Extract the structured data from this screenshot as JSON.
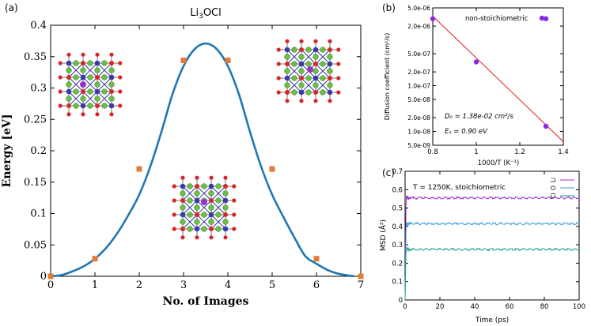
{
  "chart_data": [
    {
      "id": "a",
      "type": "line",
      "panel_label": "(a)",
      "title": "Li3OCl",
      "xlabel": "No. of Images",
      "ylabel": "Energy [eV]",
      "xlim": [
        0,
        7
      ],
      "ylim": [
        0,
        0.4
      ],
      "xticks": [
        "0",
        "1",
        "2",
        "3",
        "4",
        "5",
        "6",
        "7"
      ],
      "yticks": [
        "0",
        "0.05",
        "0.1",
        "0.15",
        "0.2",
        "0.25",
        "0.3",
        "0.35",
        "0.4"
      ],
      "curve": {
        "name": "fitted energy profile",
        "color": "#1f77b4",
        "x": [
          0,
          0.25,
          0.5,
          0.75,
          1.0,
          1.25,
          1.5,
          1.75,
          2.0,
          2.25,
          2.5,
          2.75,
          3.0,
          3.25,
          3.5,
          3.75,
          4.0,
          4.25,
          4.5,
          4.75,
          5.0,
          5.25,
          5.5,
          5.75,
          6.0,
          6.25,
          6.5,
          6.75,
          6.85
        ],
        "y": [
          0,
          0.002,
          0.008,
          0.016,
          0.028,
          0.045,
          0.068,
          0.097,
          0.13,
          0.175,
          0.23,
          0.29,
          0.335,
          0.362,
          0.371,
          0.362,
          0.335,
          0.29,
          0.23,
          0.175,
          0.13,
          0.095,
          0.062,
          0.032,
          0.02,
          0.01,
          0.004,
          0.001,
          0
        ]
      },
      "points": {
        "name": "NEB images",
        "color": "#e07b39",
        "x": [
          0,
          1,
          2,
          3,
          4,
          5,
          6,
          7
        ],
        "y": [
          0,
          0.028,
          0.171,
          0.344,
          0.344,
          0.171,
          0.028,
          0
        ]
      }
    },
    {
      "id": "b",
      "type": "scatter",
      "panel_label": "(b)",
      "xlabel": "1000/T (K⁻¹)",
      "ylabel": "Diffusion coefficient (cm²/s)",
      "xlim": [
        0.8,
        1.4
      ],
      "ylim": [
        5e-09,
        5e-06
      ],
      "yscale": "log",
      "xticks": [
        "0.8",
        "1",
        "1.2",
        "1.4"
      ],
      "yticks": [
        "5.0e-06",
        "2.0e-06",
        "5.0e-07",
        "2.0e-07",
        "1.0e-07",
        "5.0e-08",
        "2.0e-08",
        "1.0e-08",
        "5.0e-09"
      ],
      "legend_text": "non-stoichiometric",
      "annotation_d0": "D₀ = 1.38e-02 cm²/s",
      "annotation_ea": "Eₐ = 0.90 eV",
      "points": {
        "name": "non-stoichiometric",
        "color": "#8a2be2",
        "x": [
          0.8,
          1.0,
          1.32,
          1.32
        ],
        "y": [
          2.9e-06,
          3.3e-07,
          2.9e-06,
          1.3e-08
        ]
      },
      "fit_line": {
        "color": "#e41a1c",
        "x": [
          0.8,
          1.4
        ],
        "y": [
          3.3e-06,
          6e-09
        ]
      }
    },
    {
      "id": "c",
      "type": "line",
      "panel_label": "(c)",
      "xlabel": "Time (ps)",
      "ylabel": "MSD (Å²)",
      "xlim": [
        0,
        100
      ],
      "ylim": [
        0,
        0.7
      ],
      "xticks": [
        "0",
        "20",
        "40",
        "60",
        "80",
        "100"
      ],
      "yticks": [
        "0",
        "0.1",
        "0.2",
        "0.3",
        "0.4",
        "0.5",
        "0.6",
        "0.7"
      ],
      "annotation": "T = 1250K, stoichiometric",
      "series": [
        {
          "name": "Li",
          "color": "#9b30d0",
          "plateau": 0.555,
          "start": 0.6
        },
        {
          "name": "O",
          "color": "#3d9bd6",
          "plateau": 0.415,
          "start": 0.44
        },
        {
          "name": "Cl",
          "color": "#1f9e89",
          "plateau": 0.275,
          "start": 0.3
        }
      ]
    }
  ],
  "colors": {
    "li_atom": "#6abf45",
    "o_atom": "#d62728",
    "cl_atom": "#3b3ba8",
    "moving_atom": "#9932cc"
  }
}
